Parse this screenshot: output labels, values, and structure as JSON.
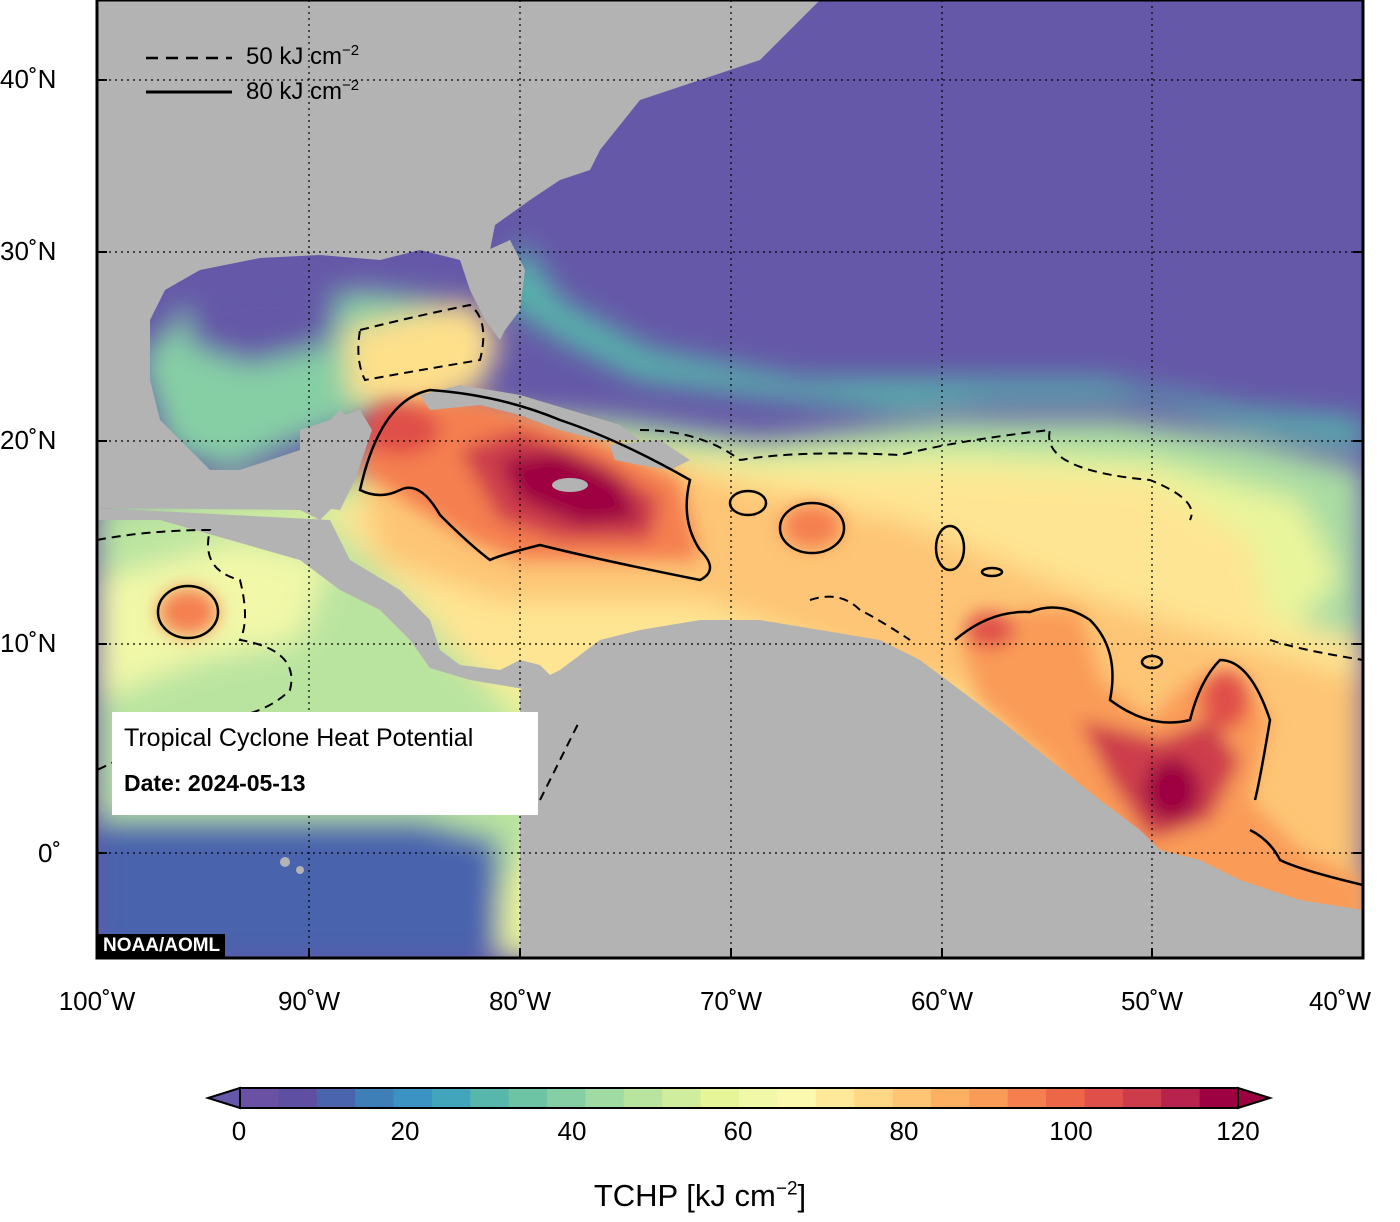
{
  "map": {
    "title": "Tropical Cyclone Heat Potential",
    "date_label": "Date: 2024-05-13",
    "credit": "NOAA/AOML",
    "lat_labels": [
      "40˚N",
      "30˚N",
      "20˚N",
      "10˚N",
      "0˚"
    ],
    "lon_labels": [
      "100˚W",
      "90˚W",
      "80˚W",
      "70˚W",
      "60˚W",
      "50˚W",
      "40˚W"
    ],
    "extent": {
      "lon": [
        -100,
        -40
      ],
      "lat": [
        -5,
        45
      ]
    },
    "contours": [
      {
        "value_label": "50 kJ cm",
        "sup": "−2",
        "style": "dashed"
      },
      {
        "value_label": "80 kJ cm",
        "sup": "−2",
        "style": "solid"
      }
    ],
    "colors": {
      "ocean_cold": "#6558a8",
      "land": "#b3b3b3",
      "hot": "#9e0142"
    }
  },
  "colorbar": {
    "ticks": [
      "0",
      "20",
      "40",
      "60",
      "80",
      "100",
      "120"
    ],
    "range": [
      0,
      120
    ],
    "label_main": "TCHP [kJ cm",
    "label_sup": "−2",
    "label_end": "]",
    "colors": [
      "#6a51a3",
      "#5e4fa2",
      "#4a64ad",
      "#3f7fb8",
      "#3a93c2",
      "#43a5bc",
      "#57b7ab",
      "#6cc4a5",
      "#86cfa5",
      "#a1dba4",
      "#b9e4a0",
      "#d0ec9d",
      "#e6f598",
      "#f1f8a8",
      "#fbf8b0",
      "#fee99a",
      "#fed884",
      "#fdc574",
      "#fdb062",
      "#fa9b58",
      "#f57f4f",
      "#ed6647",
      "#e04f4a",
      "#cd3c4b",
      "#b7234c",
      "#9e0142"
    ]
  }
}
